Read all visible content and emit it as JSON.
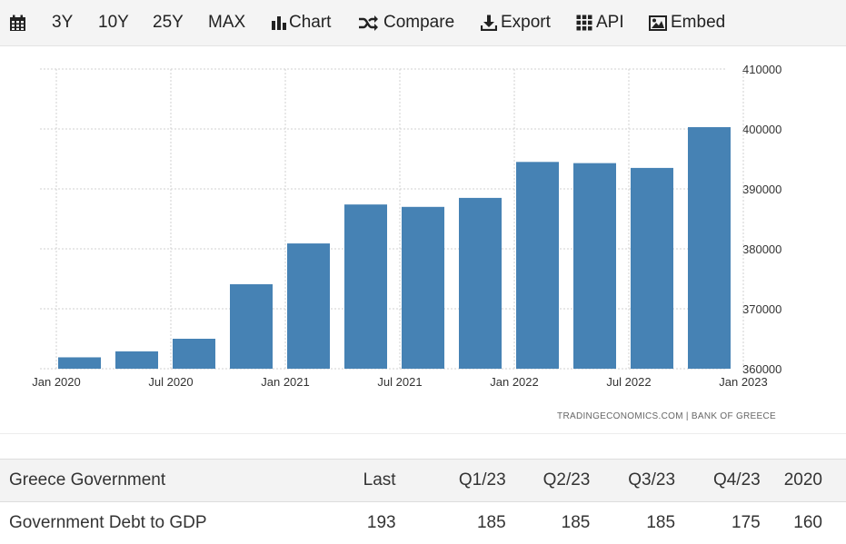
{
  "toolbar": {
    "items": [
      {
        "label": "",
        "icon": "calendar-icon"
      },
      {
        "label": "3Y"
      },
      {
        "label": "10Y"
      },
      {
        "label": "25Y"
      },
      {
        "label": "MAX"
      },
      {
        "label": "Chart",
        "icon": "bar-chart-icon"
      },
      {
        "label": "Compare",
        "icon": "shuffle-icon"
      },
      {
        "label": "Export",
        "icon": "download-icon"
      },
      {
        "label": "API",
        "icon": "grid-icon"
      },
      {
        "label": "Embed",
        "icon": "image-icon"
      }
    ]
  },
  "chart_data": {
    "type": "bar",
    "title": "",
    "xlabel": "",
    "ylabel": "",
    "color": "#4682b4",
    "grid": true,
    "categories": [
      "Q1 2020",
      "Q2 2020",
      "Q3 2020",
      "Q4 2020",
      "Q1 2021",
      "Q2 2021",
      "Q3 2021",
      "Q4 2021",
      "Q1 2022",
      "Q2 2022",
      "Q3 2022",
      "Q4 2022"
    ],
    "values": [
      361900,
      362900,
      365000,
      374100,
      380900,
      387400,
      387000,
      388500,
      394500,
      394300,
      393500,
      400300
    ],
    "ylim": [
      360000,
      410000
    ],
    "y_ticks": [
      "360000",
      "370000",
      "380000",
      "390000",
      "400000",
      "410000"
    ],
    "x_tick_labels": [
      "Jan 2020",
      "Jul 2020",
      "Jan 2021",
      "Jul 2021",
      "Jan 2022",
      "Jul 2022",
      "Jan 2023"
    ],
    "credit": "TRADINGECONOMICS.COM | BANK OF GREECE"
  },
  "table": {
    "headers": [
      "Greece Government",
      "Last",
      "Q1/23",
      "Q2/23",
      "Q3/23",
      "Q4/23",
      "2020"
    ],
    "rows": [
      [
        "Government Debt to GDP",
        "193",
        "185",
        "185",
        "185",
        "175",
        "160"
      ]
    ]
  }
}
